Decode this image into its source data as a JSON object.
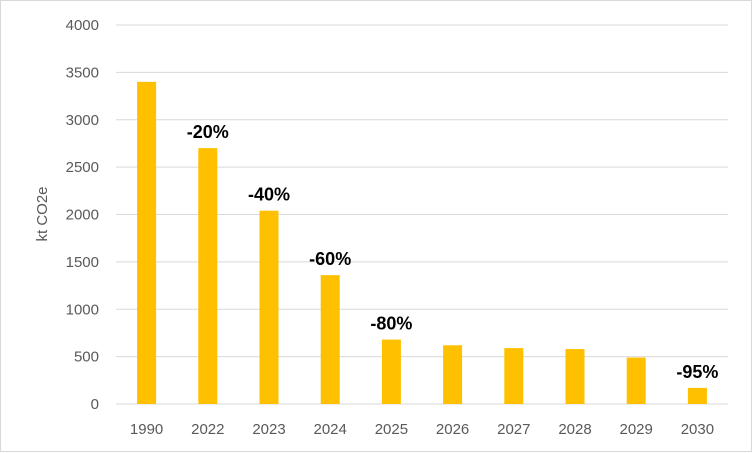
{
  "chart_data": {
    "type": "bar",
    "categories": [
      "1990",
      "2022",
      "2023",
      "2024",
      "2025",
      "2026",
      "2027",
      "2028",
      "2029",
      "2030"
    ],
    "values": [
      3400,
      2700,
      2040,
      1360,
      680,
      620,
      590,
      580,
      490,
      170
    ],
    "data_labels": [
      "",
      "-20%",
      "-40%",
      "-60%",
      "-80%",
      "",
      "",
      "",
      "",
      "-95%"
    ],
    "ylabel": "kt CO2e",
    "ylim": [
      0,
      4000
    ],
    "yticks": [
      "0",
      "500",
      "1000",
      "1500",
      "2000",
      "2500",
      "3000",
      "3500",
      "4000"
    ],
    "grid": true,
    "legend": "none",
    "colors": {
      "bar": "#FFC000",
      "grid": "#d9d9d9",
      "axis_text": "#595959",
      "label_text": "#000000"
    }
  }
}
